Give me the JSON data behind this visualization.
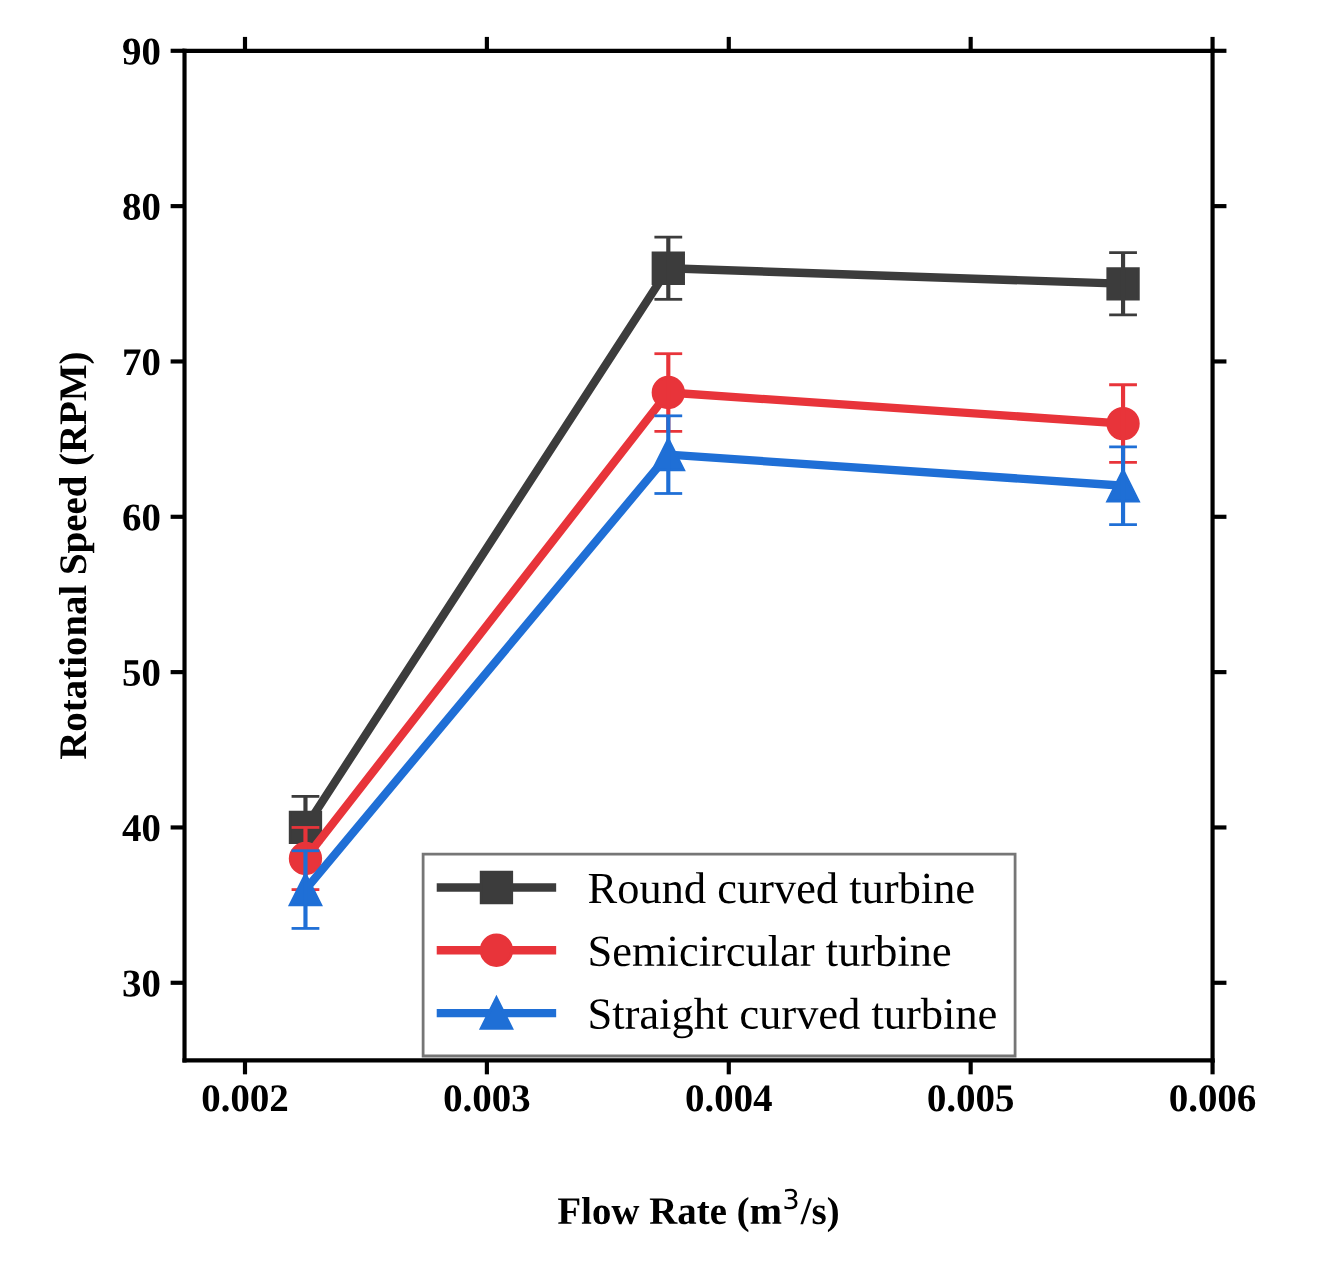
{
  "chart_data": {
    "type": "line",
    "xlabel": "Flow Rate (m$^{3}$/s)",
    "ylabel": "Rotational Speed (RPM)",
    "x": [
      0.00225,
      0.00375,
      0.00563
    ],
    "series": [
      {
        "name": "Round curved turbine",
        "color": "#3c3c3c",
        "marker": "square",
        "values": [
          40,
          76,
          75
        ],
        "errors": [
          2,
          2,
          2
        ]
      },
      {
        "name": "Semicircular turbine",
        "color": "#e8343a",
        "marker": "circle",
        "values": [
          38,
          68,
          66
        ],
        "errors": [
          2,
          2.5,
          2.5
        ]
      },
      {
        "name": "Straight curved turbine",
        "color": "#1f6fd6",
        "marker": "triangle",
        "values": [
          36,
          64,
          62
        ],
        "errors": [
          2.5,
          2.5,
          2.5
        ]
      }
    ],
    "xlim": [
      0.00175,
      0.006
    ],
    "xticks": [
      0.002,
      0.003,
      0.004,
      0.005,
      0.006
    ],
    "ylim": [
      25,
      90
    ],
    "yticks": [
      30,
      40,
      50,
      60,
      70,
      80,
      90
    ],
    "legend": "bottom",
    "grid": false,
    "line_style": "solid"
  }
}
